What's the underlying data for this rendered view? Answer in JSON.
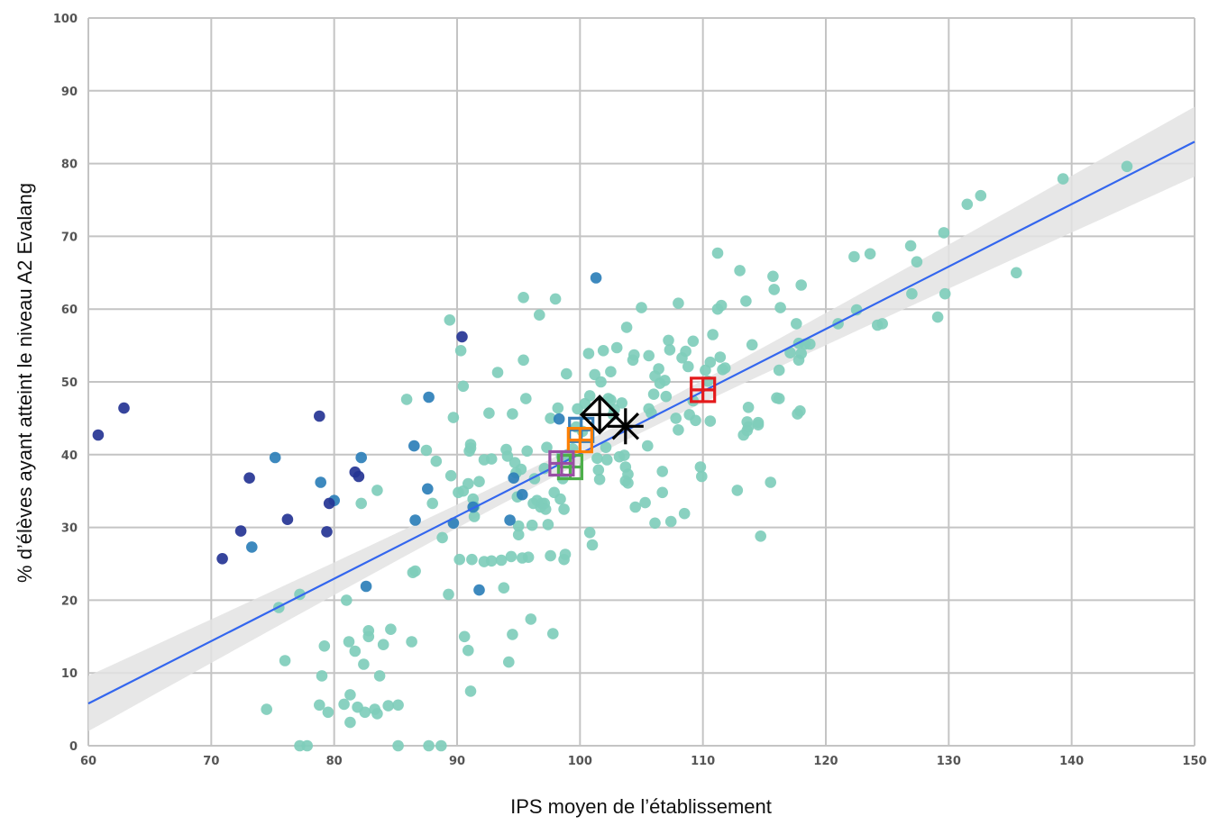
{
  "chart_data": {
    "type": "scatter",
    "title": "",
    "xlabel": "IPS moyen de l’établissement",
    "ylabel": "% d’élèves ayant atteint le niveau A2 Evalang",
    "xlim": [
      60,
      150
    ],
    "ylim": [
      0,
      100
    ],
    "xticks": [
      "60",
      "70",
      "80",
      "90",
      "100",
      "110",
      "120",
      "130",
      "140",
      "150"
    ],
    "yticks": [
      "0",
      "10",
      "20",
      "30",
      "40",
      "50",
      "60",
      "70",
      "80",
      "90",
      "100"
    ],
    "grid": true,
    "colors": {
      "teal": "#7fcdbb",
      "blue": "#2c7fb8",
      "navy": "#253494",
      "regression": "#3366ee",
      "confidence_band": "#e3e3e3",
      "grid": "#c4c4c4"
    },
    "regression": {
      "x": [
        60,
        150
      ],
      "y": [
        5.8,
        83.0
      ],
      "band_halfwidth": [
        3.8,
        4.8
      ],
      "band_min_halfwidth": 1.3,
      "band_center_x": 101
    },
    "series": [
      {
        "color": "#7fcdbb",
        "points": [
          [
            75.5,
            19.0
          ],
          [
            76.0,
            11.7
          ],
          [
            77.2,
            20.8
          ],
          [
            74.5,
            5.0
          ],
          [
            77.2,
            0.0
          ],
          [
            77.8,
            0.0
          ],
          [
            78.8,
            5.6
          ],
          [
            79.0,
            9.6
          ],
          [
            79.2,
            13.7
          ],
          [
            79.5,
            4.6
          ],
          [
            80.8,
            5.7
          ],
          [
            81.0,
            20.0
          ],
          [
            81.2,
            14.3
          ],
          [
            81.3,
            7.0
          ],
          [
            81.3,
            3.2
          ],
          [
            81.7,
            13.0
          ],
          [
            81.9,
            5.3
          ],
          [
            82.2,
            33.3
          ],
          [
            82.4,
            11.2
          ],
          [
            82.5,
            4.6
          ],
          [
            82.8,
            15.8
          ],
          [
            82.8,
            15.0
          ],
          [
            83.3,
            5.0
          ],
          [
            83.5,
            4.4
          ],
          [
            83.5,
            35.1
          ],
          [
            83.7,
            9.6
          ],
          [
            84.0,
            13.9
          ],
          [
            84.4,
            5.5
          ],
          [
            84.6,
            16.0
          ],
          [
            85.2,
            5.6
          ],
          [
            85.2,
            0.0
          ],
          [
            85.9,
            47.6
          ],
          [
            86.3,
            14.3
          ],
          [
            86.4,
            23.8
          ],
          [
            86.6,
            24.0
          ],
          [
            87.5,
            40.6
          ],
          [
            87.7,
            0.0
          ],
          [
            88.0,
            33.3
          ],
          [
            88.3,
            39.1
          ],
          [
            88.7,
            0.0
          ],
          [
            88.8,
            28.6
          ],
          [
            89.3,
            20.8
          ],
          [
            89.4,
            58.5
          ],
          [
            89.5,
            37.1
          ],
          [
            89.7,
            45.1
          ],
          [
            90.1,
            34.8
          ],
          [
            90.2,
            25.6
          ],
          [
            90.3,
            54.3
          ],
          [
            90.5,
            35.0
          ],
          [
            90.5,
            49.4
          ],
          [
            90.6,
            15.0
          ],
          [
            90.9,
            36.0
          ],
          [
            90.9,
            13.1
          ],
          [
            91.0,
            40.5
          ],
          [
            91.1,
            41.4
          ],
          [
            91.1,
            40.9
          ],
          [
            91.1,
            7.5
          ],
          [
            91.2,
            25.6
          ],
          [
            91.3,
            33.9
          ],
          [
            91.4,
            32.9
          ],
          [
            91.4,
            31.5
          ],
          [
            91.8,
            36.3
          ],
          [
            92.2,
            39.3
          ],
          [
            92.2,
            25.3
          ],
          [
            92.6,
            45.7
          ],
          [
            92.8,
            25.4
          ],
          [
            92.8,
            39.4
          ],
          [
            93.3,
            51.3
          ],
          [
            93.6,
            25.5
          ],
          [
            93.8,
            21.7
          ],
          [
            94.0,
            40.7
          ],
          [
            94.1,
            39.8
          ],
          [
            94.2,
            11.5
          ],
          [
            94.4,
            26.0
          ],
          [
            94.5,
            45.6
          ],
          [
            94.5,
            15.3
          ],
          [
            94.7,
            38.9
          ],
          [
            94.8,
            37.5
          ],
          [
            94.9,
            34.2
          ],
          [
            95.0,
            29.0
          ],
          [
            95.0,
            30.2
          ],
          [
            95.2,
            38.0
          ],
          [
            95.3,
            25.8
          ],
          [
            95.4,
            61.6
          ],
          [
            95.4,
            53.0
          ],
          [
            95.6,
            47.7
          ],
          [
            95.7,
            40.5
          ],
          [
            95.8,
            25.9
          ],
          [
            96.0,
            17.4
          ],
          [
            96.1,
            30.3
          ],
          [
            96.2,
            33.3
          ],
          [
            96.3,
            36.7
          ],
          [
            96.5,
            33.7
          ],
          [
            96.7,
            59.2
          ],
          [
            96.8,
            32.8
          ],
          [
            96.9,
            33.3
          ],
          [
            97.1,
            33.3
          ],
          [
            97.1,
            38.1
          ],
          [
            97.2,
            32.5
          ],
          [
            97.3,
            41.0
          ],
          [
            97.4,
            30.4
          ],
          [
            97.6,
            45.0
          ],
          [
            97.6,
            26.1
          ],
          [
            97.8,
            15.4
          ],
          [
            97.9,
            34.8
          ],
          [
            98.0,
            61.4
          ],
          [
            98.2,
            46.4
          ],
          [
            98.4,
            33.9
          ],
          [
            98.5,
            39.8
          ],
          [
            98.6,
            36.7
          ],
          [
            98.7,
            32.5
          ],
          [
            98.7,
            25.6
          ],
          [
            98.8,
            26.3
          ],
          [
            98.9,
            51.1
          ],
          [
            99.0,
            40.0
          ],
          [
            99.4,
            40.8
          ],
          [
            99.7,
            43.8
          ],
          [
            99.8,
            46.3
          ],
          [
            100.2,
            43.2
          ],
          [
            100.4,
            47.0
          ],
          [
            100.7,
            53.9
          ],
          [
            100.8,
            29.3
          ],
          [
            100.8,
            48.1
          ],
          [
            101.0,
            27.6
          ],
          [
            101.2,
            51.0
          ],
          [
            101.4,
            39.5
          ],
          [
            101.5,
            37.9
          ],
          [
            101.6,
            36.6
          ],
          [
            101.7,
            50.0
          ],
          [
            101.9,
            54.3
          ],
          [
            102.1,
            41.0
          ],
          [
            102.2,
            39.3
          ],
          [
            102.3,
            47.7
          ],
          [
            102.5,
            47.5
          ],
          [
            102.5,
            51.4
          ],
          [
            102.7,
            45.5
          ],
          [
            102.8,
            46.2
          ],
          [
            103.0,
            54.7
          ],
          [
            103.2,
            39.7
          ],
          [
            103.4,
            47.1
          ],
          [
            103.6,
            39.9
          ],
          [
            103.7,
            38.3
          ],
          [
            103.7,
            36.4
          ],
          [
            103.8,
            57.5
          ],
          [
            103.9,
            37.3
          ],
          [
            103.9,
            36.1
          ],
          [
            104.3,
            53.0
          ],
          [
            104.4,
            53.7
          ],
          [
            104.5,
            32.8
          ],
          [
            105.0,
            60.2
          ],
          [
            105.3,
            33.4
          ],
          [
            105.5,
            41.2
          ],
          [
            105.6,
            53.6
          ],
          [
            105.6,
            46.3
          ],
          [
            105.8,
            45.7
          ],
          [
            106.0,
            48.3
          ],
          [
            106.1,
            50.8
          ],
          [
            106.1,
            30.6
          ],
          [
            106.4,
            51.8
          ],
          [
            106.5,
            49.8
          ],
          [
            106.7,
            37.7
          ],
          [
            106.7,
            34.8
          ],
          [
            106.9,
            50.2
          ],
          [
            107.0,
            48.0
          ],
          [
            107.2,
            55.7
          ],
          [
            107.3,
            54.4
          ],
          [
            107.4,
            30.8
          ],
          [
            107.8,
            45.0
          ],
          [
            108.0,
            60.8
          ],
          [
            108.0,
            43.4
          ],
          [
            108.3,
            53.3
          ],
          [
            108.5,
            31.9
          ],
          [
            108.6,
            54.2
          ],
          [
            108.8,
            52.1
          ],
          [
            108.9,
            45.5
          ],
          [
            109.2,
            55.6
          ],
          [
            109.2,
            47.4
          ],
          [
            109.4,
            44.7
          ],
          [
            109.8,
            38.3
          ],
          [
            109.9,
            37.0
          ],
          [
            110.2,
            51.6
          ],
          [
            110.4,
            50.1
          ],
          [
            110.6,
            52.7
          ],
          [
            110.6,
            44.6
          ],
          [
            110.8,
            56.5
          ],
          [
            111.2,
            67.7
          ],
          [
            111.2,
            60.0
          ],
          [
            111.4,
            53.4
          ],
          [
            111.5,
            60.5
          ],
          [
            111.6,
            51.7
          ],
          [
            111.8,
            51.9
          ],
          [
            112.8,
            35.1
          ],
          [
            113.0,
            65.3
          ],
          [
            113.3,
            42.7
          ],
          [
            113.5,
            61.1
          ],
          [
            113.6,
            44.5
          ],
          [
            113.6,
            43.3
          ],
          [
            113.7,
            43.8
          ],
          [
            113.7,
            46.5
          ],
          [
            114.0,
            55.1
          ],
          [
            114.5,
            44.4
          ],
          [
            114.5,
            44.1
          ],
          [
            114.7,
            28.8
          ],
          [
            115.5,
            36.2
          ],
          [
            115.7,
            64.5
          ],
          [
            115.8,
            62.7
          ],
          [
            116.0,
            47.8
          ],
          [
            116.2,
            51.6
          ],
          [
            116.2,
            47.7
          ],
          [
            116.3,
            60.2
          ],
          [
            117.1,
            54.0
          ],
          [
            117.6,
            58.0
          ],
          [
            117.7,
            45.6
          ],
          [
            117.8,
            53.0
          ],
          [
            117.8,
            55.3
          ],
          [
            117.9,
            46.0
          ],
          [
            118.0,
            53.9
          ],
          [
            118.0,
            63.3
          ],
          [
            118.3,
            55.2
          ],
          [
            118.7,
            55.2
          ],
          [
            121.0,
            58.0
          ],
          [
            122.3,
            67.2
          ],
          [
            122.5,
            59.9
          ],
          [
            123.6,
            67.6
          ],
          [
            124.2,
            57.8
          ],
          [
            124.6,
            58.0
          ],
          [
            126.9,
            68.7
          ],
          [
            127.0,
            62.1
          ],
          [
            127.4,
            66.5
          ],
          [
            129.1,
            58.9
          ],
          [
            129.6,
            70.5
          ],
          [
            129.7,
            62.1
          ],
          [
            131.5,
            74.4
          ],
          [
            132.6,
            75.6
          ],
          [
            135.5,
            65.0
          ],
          [
            139.3,
            77.9
          ],
          [
            144.5,
            79.6
          ]
        ]
      },
      {
        "color": "#2c7fb8",
        "points": [
          [
            75.2,
            39.6
          ],
          [
            78.9,
            36.2
          ],
          [
            80.0,
            33.7
          ],
          [
            82.2,
            39.6
          ],
          [
            82.6,
            21.9
          ],
          [
            86.5,
            41.2
          ],
          [
            86.6,
            31.0
          ],
          [
            87.6,
            35.3
          ],
          [
            87.7,
            47.9
          ],
          [
            89.7,
            30.6
          ],
          [
            91.3,
            32.8
          ],
          [
            91.8,
            21.4
          ],
          [
            94.3,
            31.0
          ],
          [
            94.6,
            36.8
          ],
          [
            95.3,
            34.5
          ],
          [
            98.3,
            44.9
          ],
          [
            101.3,
            64.3
          ],
          [
            73.3,
            27.3
          ]
        ]
      },
      {
        "color": "#253494",
        "points": [
          [
            60.8,
            42.7
          ],
          [
            62.9,
            46.4
          ],
          [
            70.9,
            25.7
          ],
          [
            72.4,
            29.5
          ],
          [
            73.1,
            36.8
          ],
          [
            76.2,
            31.1
          ],
          [
            78.8,
            45.3
          ],
          [
            79.4,
            29.4
          ],
          [
            79.6,
            33.3
          ],
          [
            81.7,
            37.6
          ],
          [
            82.0,
            37.0
          ],
          [
            90.4,
            56.2
          ]
        ]
      }
    ],
    "markers": [
      {
        "shape": "boxplus",
        "color": "#e41a1c",
        "x": 110.0,
        "y": 48.9
      },
      {
        "shape": "boxplus",
        "color": "#377eb8",
        "x": 100.1,
        "y": 43.4
      },
      {
        "shape": "boxplus",
        "color": "#ff7f00",
        "x": 100.0,
        "y": 42.0
      },
      {
        "shape": "boxplus",
        "color": "#4daf4a",
        "x": 99.2,
        "y": 38.3
      },
      {
        "shape": "boxplus",
        "color": "#984ea3",
        "x": 98.5,
        "y": 38.8
      },
      {
        "shape": "diamondplus",
        "color": "#000000",
        "x": 101.6,
        "y": 45.5
      },
      {
        "shape": "asterisk",
        "color": "#000000",
        "x": 103.7,
        "y": 43.9
      }
    ]
  }
}
